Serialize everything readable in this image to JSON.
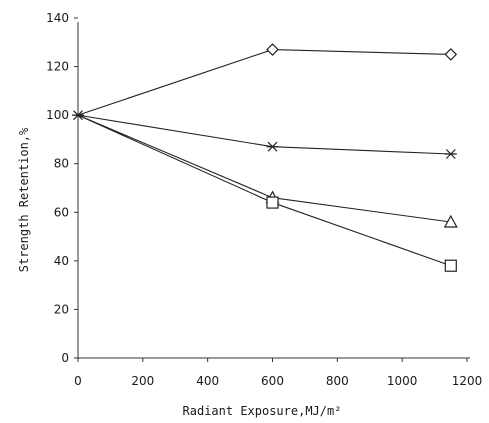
{
  "chart_data": {
    "type": "line",
    "title": "",
    "xlabel": "Radiant Exposure,MJ/m²",
    "ylabel": "Strength Retention,%",
    "xlim": [
      0,
      1200
    ],
    "ylim": [
      0,
      140
    ],
    "xticks": [
      0,
      200,
      400,
      600,
      800,
      1000,
      1200
    ],
    "yticks": [
      0,
      20,
      40,
      60,
      80,
      100,
      120,
      140
    ],
    "grid": false,
    "legend": "none",
    "series": [
      {
        "marker": "diamond",
        "x": [
          0,
          600,
          1150
        ],
        "y": [
          100,
          127,
          125
        ]
      },
      {
        "marker": "asterisk",
        "x": [
          0,
          600,
          1150
        ],
        "y": [
          100,
          87,
          84
        ]
      },
      {
        "marker": "triangle",
        "x": [
          0,
          600,
          1150
        ],
        "y": [
          100,
          66,
          56
        ]
      },
      {
        "marker": "square",
        "x": [
          0,
          600,
          1150
        ],
        "y": [
          100,
          64,
          38
        ]
      }
    ]
  }
}
